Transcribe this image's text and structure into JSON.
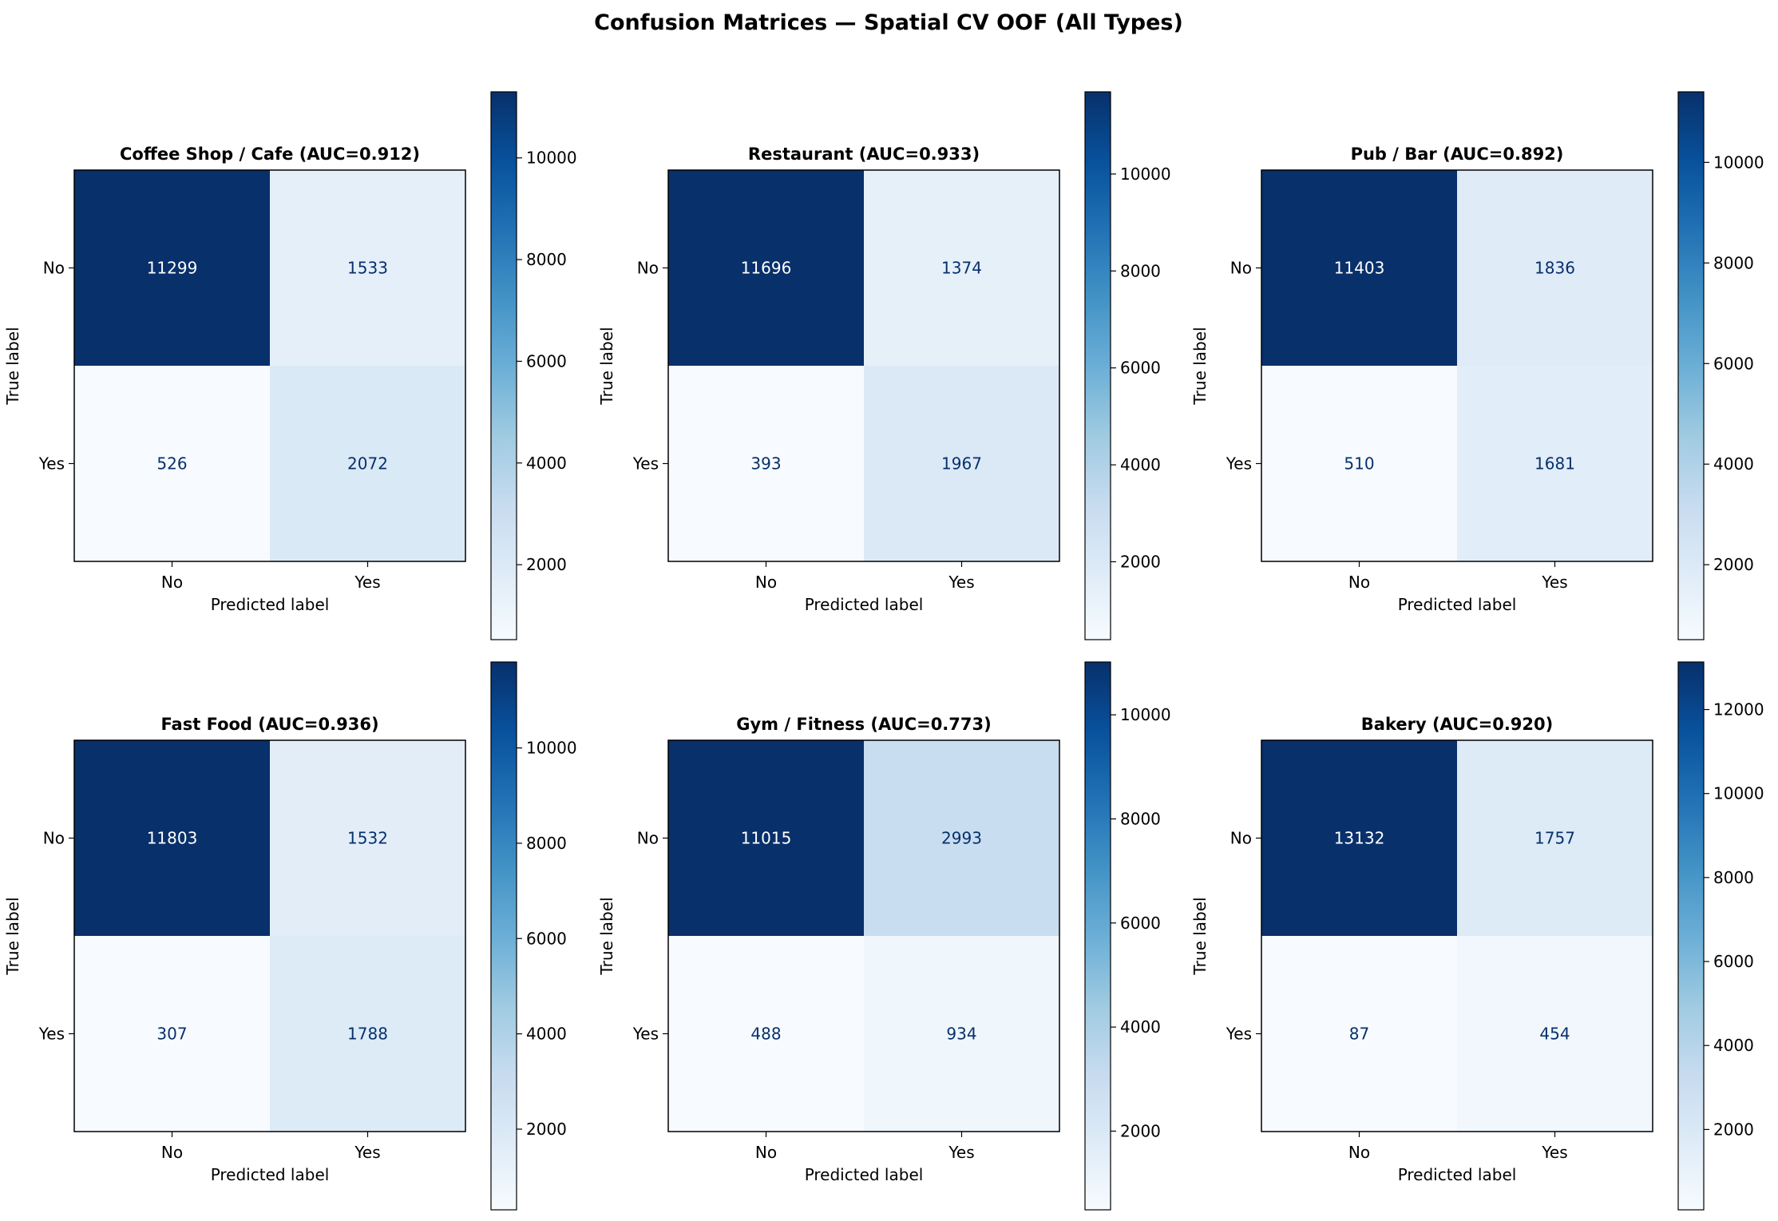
{
  "figure": {
    "suptitle": "Confusion Matrices — Spatial CV OOF (All Types)",
    "colormap": "Blues",
    "colors": {
      "low": "#f7fbff",
      "high": "#08306b",
      "light_text": "#ffffff",
      "dark_text": "#08306b"
    }
  },
  "chart_data": [
    {
      "type": "heatmap",
      "title": "Coffee Shop / Cafe (AUC=0.912)",
      "xlabel": "Predicted label",
      "ylabel": "True label",
      "x_categories": [
        "No",
        "Yes"
      ],
      "y_categories": [
        "No",
        "Yes"
      ],
      "matrix": [
        [
          11299,
          1533
        ],
        [
          526,
          2072
        ]
      ],
      "colorbar": {
        "ticks": [
          2000,
          4000,
          6000,
          8000,
          10000
        ]
      }
    },
    {
      "type": "heatmap",
      "title": "Restaurant (AUC=0.933)",
      "xlabel": "Predicted label",
      "ylabel": "True label",
      "x_categories": [
        "No",
        "Yes"
      ],
      "y_categories": [
        "No",
        "Yes"
      ],
      "matrix": [
        [
          11696,
          1374
        ],
        [
          393,
          1967
        ]
      ],
      "colorbar": {
        "ticks": [
          2000,
          4000,
          6000,
          8000,
          10000
        ]
      }
    },
    {
      "type": "heatmap",
      "title": "Pub / Bar (AUC=0.892)",
      "xlabel": "Predicted label",
      "ylabel": "True label",
      "x_categories": [
        "No",
        "Yes"
      ],
      "y_categories": [
        "No",
        "Yes"
      ],
      "matrix": [
        [
          11403,
          1836
        ],
        [
          510,
          1681
        ]
      ],
      "colorbar": {
        "ticks": [
          2000,
          4000,
          6000,
          8000,
          10000
        ]
      }
    },
    {
      "type": "heatmap",
      "title": "Fast Food (AUC=0.936)",
      "xlabel": "Predicted label",
      "ylabel": "True label",
      "x_categories": [
        "No",
        "Yes"
      ],
      "y_categories": [
        "No",
        "Yes"
      ],
      "matrix": [
        [
          11803,
          1532
        ],
        [
          307,
          1788
        ]
      ],
      "colorbar": {
        "ticks": [
          2000,
          4000,
          6000,
          8000,
          10000
        ]
      }
    },
    {
      "type": "heatmap",
      "title": "Gym / Fitness (AUC=0.773)",
      "xlabel": "Predicted label",
      "ylabel": "True label",
      "x_categories": [
        "No",
        "Yes"
      ],
      "y_categories": [
        "No",
        "Yes"
      ],
      "matrix": [
        [
          11015,
          2993
        ],
        [
          488,
          934
        ]
      ],
      "colorbar": {
        "ticks": [
          2000,
          4000,
          6000,
          8000,
          10000
        ]
      }
    },
    {
      "type": "heatmap",
      "title": "Bakery (AUC=0.920)",
      "xlabel": "Predicted label",
      "ylabel": "True label",
      "x_categories": [
        "No",
        "Yes"
      ],
      "y_categories": [
        "No",
        "Yes"
      ],
      "matrix": [
        [
          13132,
          1757
        ],
        [
          87,
          454
        ]
      ],
      "colorbar": {
        "ticks": [
          2000,
          4000,
          6000,
          8000,
          10000,
          12000
        ]
      }
    }
  ]
}
